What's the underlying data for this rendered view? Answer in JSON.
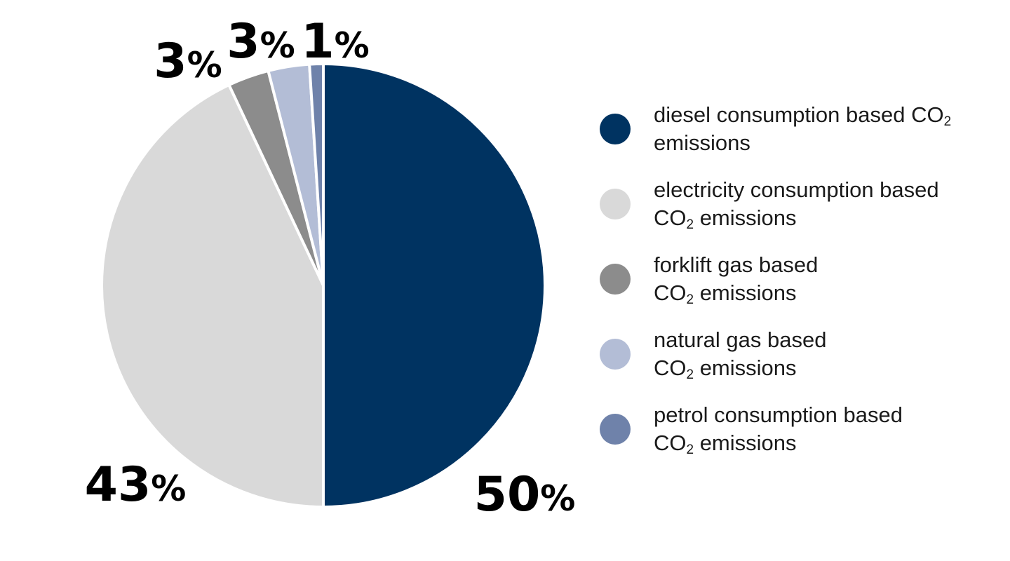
{
  "chart_data": {
    "type": "pie",
    "slices": [
      {
        "label": "50%",
        "value": 50,
        "color": "#003361"
      },
      {
        "label": "43%",
        "value": 43,
        "color": "#d9d9d9"
      },
      {
        "label": "3%",
        "value": 3,
        "color": "#8c8c8c"
      },
      {
        "label": "3%",
        "value": 3,
        "color": "#b3bdd6"
      },
      {
        "label": "1%",
        "value": 1,
        "color": "#6f82aa"
      }
    ],
    "legend": {
      "position": "right",
      "entries": [
        {
          "line1": "diesel consumption based CO",
          "sub": "2",
          "line2": "emissions",
          "color": "#003361"
        },
        {
          "line1": "electricity consumption based",
          "pre": "CO",
          "sub": "2",
          "post": " emissions",
          "color": "#d9d9d9"
        },
        {
          "line1": "forklift gas based",
          "pre": "CO",
          "sub": "2",
          "post": " emissions",
          "color": "#8c8c8c"
        },
        {
          "line1": "natural gas based",
          "pre": "CO",
          "sub": "2",
          "post": " emissions",
          "color": "#b3bdd6"
        },
        {
          "line1": "petrol consumption based",
          "pre": "CO",
          "sub": "2",
          "post": " emissions",
          "color": "#6f82aa"
        }
      ]
    }
  }
}
